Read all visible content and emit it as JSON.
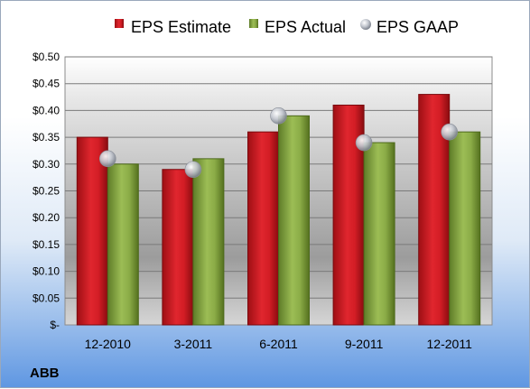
{
  "chart_data": {
    "type": "bar",
    "categories": [
      "12-2010",
      "3-2011",
      "6-2011",
      "9-2011",
      "12-2011"
    ],
    "series": [
      {
        "name": "EPS Estimate",
        "type": "bar",
        "color": "#d8222a",
        "values": [
          0.35,
          0.29,
          0.36,
          0.41,
          0.43
        ]
      },
      {
        "name": "EPS Actual",
        "type": "bar",
        "color": "#8fb24a",
        "values": [
          0.3,
          0.31,
          0.39,
          0.34,
          0.36
        ]
      },
      {
        "name": "EPS GAAP",
        "type": "scatter",
        "color": "#c8ccd4",
        "values": [
          0.31,
          0.29,
          0.39,
          0.34,
          0.36
        ]
      }
    ],
    "yticks": [
      "$-",
      "$0.05",
      "$0.10",
      "$0.15",
      "$0.20",
      "$0.25",
      "$0.30",
      "$0.35",
      "$0.40",
      "$0.45",
      "$0.50"
    ],
    "ylim": [
      0,
      0.5
    ],
    "ystep": 0.05,
    "grid": true,
    "legend_position": "top",
    "company": "ABB"
  }
}
